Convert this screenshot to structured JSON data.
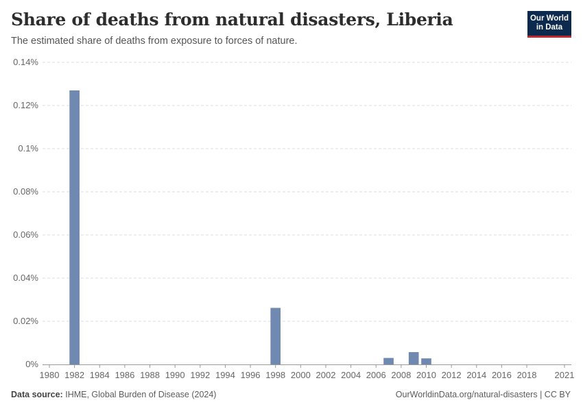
{
  "header": {
    "title": "Share of deaths from natural disasters, Liberia",
    "subtitle": "The estimated share of deaths from exposure to forces of nature.",
    "logo_line1": "Our World",
    "logo_line2": "in Data"
  },
  "footer": {
    "source_label": "Data source:",
    "source_text": "IHME, Global Burden of Disease (2024)",
    "right_text": "OurWorldinData.org/natural-disasters | CC BY"
  },
  "colors": {
    "bar": "#6f89b1",
    "grid": "#dddddd",
    "axis": "#999999",
    "logo_bg": "#0c2a4d",
    "logo_accent": "#c3272b"
  },
  "chart_data": {
    "type": "bar",
    "title": "Share of deaths from natural disasters, Liberia",
    "subtitle": "The estimated share of deaths from exposure to forces of nature.",
    "xlabel": "",
    "ylabel": "",
    "unit": "%",
    "xlim": [
      1980,
      2021
    ],
    "ylim": [
      0,
      0.14
    ],
    "grid": true,
    "y_ticks": [
      0,
      0.02,
      0.04,
      0.06,
      0.08,
      0.1,
      0.12,
      0.14
    ],
    "y_tick_labels": [
      "0%",
      "0.02%",
      "0.04%",
      "0.06%",
      "0.08%",
      "0.1%",
      "0.12%",
      "0.14%"
    ],
    "x_ticks": [
      1980,
      1982,
      1984,
      1986,
      1988,
      1990,
      1992,
      1994,
      1996,
      1998,
      2000,
      2002,
      2004,
      2006,
      2008,
      2010,
      2012,
      2014,
      2016,
      2018,
      2021
    ],
    "x_tick_labels": [
      "1980",
      "1982",
      "1984",
      "1986",
      "1988",
      "1990",
      "1992",
      "1994",
      "1996",
      "1998",
      "2000",
      "2002",
      "2004",
      "2006",
      "2008",
      "2010",
      "2012",
      "2014",
      "2016",
      "2018",
      "2021"
    ],
    "series": [
      {
        "name": "Liberia",
        "points": [
          {
            "x": 1982,
            "y": 0.127
          },
          {
            "x": 1998,
            "y": 0.0262
          },
          {
            "x": 2007,
            "y": 0.003
          },
          {
            "x": 2009,
            "y": 0.0057
          },
          {
            "x": 2010,
            "y": 0.0028
          }
        ]
      }
    ]
  }
}
